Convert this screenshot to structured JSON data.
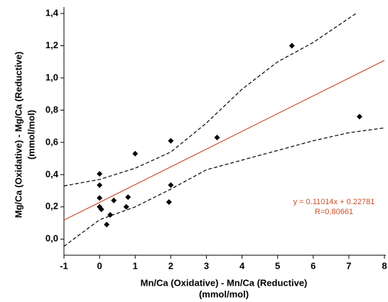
{
  "chart_data": {
    "type": "scatter",
    "xlabel": [
      "Mn/Ca (Oxidative) - Mn/Ca (Reductive)",
      "(mmol/mol)"
    ],
    "ylabel": [
      "Mg/Ca (Oxidative) - Mg/Ca (Reductive)",
      "(mmol/mol)"
    ],
    "annotations": [
      "y = 0.11014x + 0.22781",
      "R=0,80661"
    ],
    "annotation_color": "#c8502a",
    "xlim": [
      -1,
      8
    ],
    "xticks": [
      -1,
      0,
      1,
      2,
      3,
      4,
      5,
      6,
      7,
      8
    ],
    "ylim": [
      -0.1,
      1.4
    ],
    "yticks": [
      {
        "value": 0,
        "label": "0,0"
      },
      {
        "value": 0.2,
        "label": "0,2"
      },
      {
        "value": 0.4,
        "label": "0,4"
      },
      {
        "value": 0.6,
        "label": "0,6"
      },
      {
        "value": 0.8,
        "label": "0,8"
      },
      {
        "value": 1.0,
        "label": "1,0"
      },
      {
        "value": 1.2,
        "label": "1,2"
      },
      {
        "value": 1.4,
        "label": "1,4"
      }
    ],
    "series": [
      {
        "style": "points",
        "color": "#000000",
        "x": [
          0.0,
          0.0,
          0.0,
          0.0,
          0.05,
          0.3,
          0.2,
          0.4,
          0.8,
          0.75,
          1.0,
          2.0,
          2.0,
          1.95,
          3.3,
          5.4,
          7.3
        ],
        "values": [
          0.405,
          0.335,
          0.255,
          0.2,
          0.185,
          0.15,
          0.09,
          0.24,
          0.26,
          0.2,
          0.53,
          0.61,
          0.335,
          0.23,
          0.63,
          1.2,
          0.76
        ]
      },
      {
        "style": "solid",
        "color": "#c8502a",
        "x": [
          -1,
          8
        ],
        "values": [
          0.1177,
          1.1089
        ]
      },
      {
        "style": "dashed",
        "color": "#000000",
        "x": [
          -1,
          0,
          1,
          2,
          3,
          4,
          5,
          6,
          7.2
        ],
        "values": [
          0.33,
          0.37,
          0.44,
          0.54,
          0.72,
          0.93,
          1.1,
          1.22,
          1.4
        ]
      },
      {
        "style": "dashed",
        "color": "#000000",
        "x": [
          -1,
          0,
          1,
          2,
          3,
          4,
          5,
          6,
          7,
          8
        ],
        "values": [
          -0.045,
          0.12,
          0.2,
          0.31,
          0.43,
          0.49,
          0.55,
          0.61,
          0.66,
          0.69
        ]
      }
    ]
  }
}
